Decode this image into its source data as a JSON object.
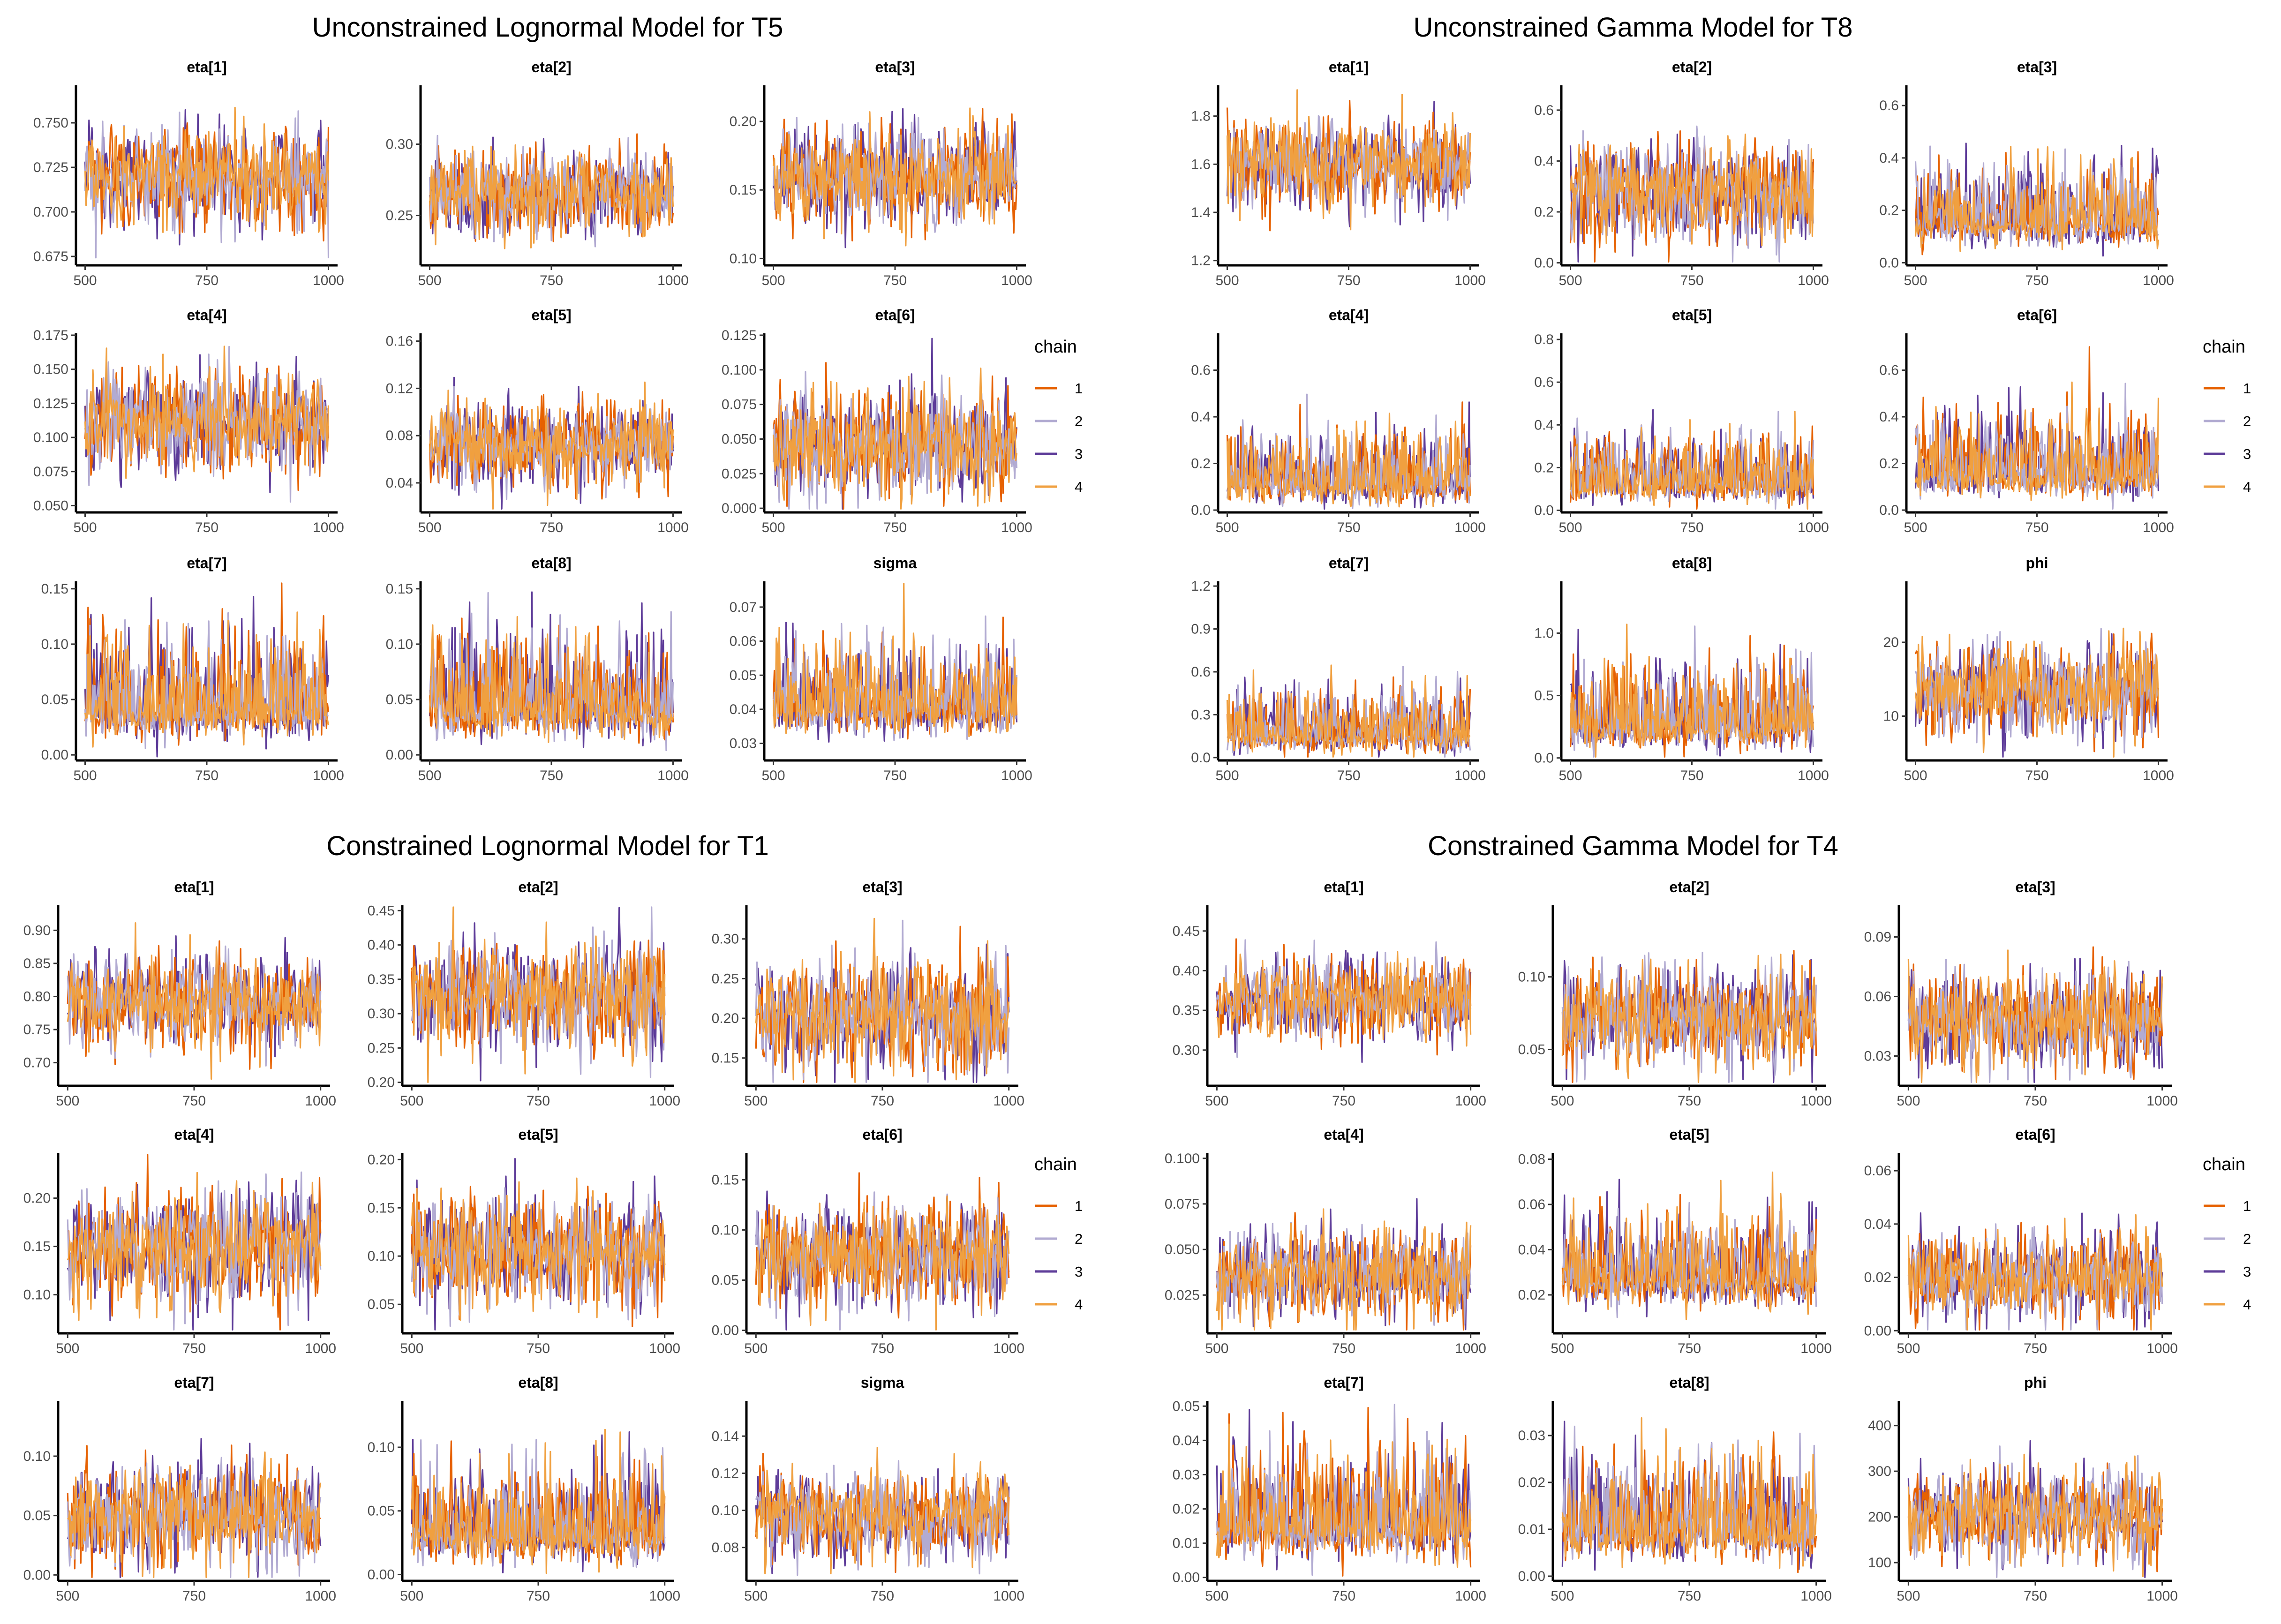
{
  "chart_data": [
    {
      "type": "line",
      "title": "Unconstrained Lognormal Model for T5",
      "x": {
        "range": [
          500,
          1000
        ],
        "ticks": [
          500,
          750,
          1000
        ]
      },
      "legend": {
        "title": "chain",
        "entries": [
          "1",
          "2",
          "3",
          "4"
        ]
      },
      "facets": [
        {
          "name": "eta[1]",
          "ylim": [
            0.67,
            0.77
          ],
          "yticks": [
            0.675,
            0.7,
            0.725,
            0.75
          ],
          "center": 0.72,
          "spread": 0.014
        },
        {
          "name": "eta[2]",
          "ylim": [
            0.215,
            0.34
          ],
          "yticks": [
            0.25,
            0.3
          ],
          "center": 0.265,
          "spread": 0.015
        },
        {
          "name": "eta[3]",
          "ylim": [
            0.095,
            0.225
          ],
          "yticks": [
            0.1,
            0.15,
            0.2
          ],
          "center": 0.16,
          "spread": 0.018
        },
        {
          "name": "eta[4]",
          "ylim": [
            0.045,
            0.175
          ],
          "yticks": [
            0.05,
            0.075,
            0.1,
            0.125,
            0.15,
            0.175
          ],
          "center": 0.112,
          "spread": 0.018
        },
        {
          "name": "eta[5]",
          "ylim": [
            0.015,
            0.165
          ],
          "yticks": [
            0.04,
            0.08,
            0.12,
            0.16
          ],
          "center": 0.072,
          "spread": 0.018
        },
        {
          "name": "eta[6]",
          "ylim": [
            -0.003,
            0.125
          ],
          "yticks": [
            0.0,
            0.025,
            0.05,
            0.075,
            0.1,
            0.125
          ],
          "center": 0.045,
          "spread": 0.02
        },
        {
          "name": "eta[7]",
          "ylim": [
            -0.005,
            0.155
          ],
          "yticks": [
            0.0,
            0.05,
            0.1,
            0.15
          ],
          "center": 0.04,
          "spread": 0.022
        },
        {
          "name": "eta[8]",
          "ylim": [
            -0.005,
            0.155
          ],
          "yticks": [
            0.0,
            0.05,
            0.1,
            0.15
          ],
          "center": 0.04,
          "spread": 0.022
        },
        {
          "name": "sigma",
          "ylim": [
            0.025,
            0.077
          ],
          "yticks": [
            0.03,
            0.04,
            0.05,
            0.06,
            0.07
          ],
          "center": 0.04,
          "spread": 0.006
        }
      ]
    },
    {
      "type": "line",
      "title": "Unconstrained Gamma Model for T8",
      "x": {
        "range": [
          500,
          1000
        ],
        "ticks": [
          500,
          750,
          1000
        ]
      },
      "legend": {
        "title": "chain",
        "entries": [
          "1",
          "2",
          "3",
          "4"
        ]
      },
      "facets": [
        {
          "name": "eta[1]",
          "ylim": [
            1.18,
            1.92
          ],
          "yticks": [
            1.2,
            1.4,
            1.6,
            1.8
          ],
          "center": 1.6,
          "spread": 0.09
        },
        {
          "name": "eta[2]",
          "ylim": [
            -0.01,
            0.69
          ],
          "yticks": [
            0.0,
            0.2,
            0.4,
            0.6
          ],
          "center": 0.28,
          "spread": 0.1
        },
        {
          "name": "eta[3]",
          "ylim": [
            -0.01,
            0.67
          ],
          "yticks": [
            0.0,
            0.2,
            0.4,
            0.6
          ],
          "center": 0.15,
          "spread": 0.07
        },
        {
          "name": "eta[4]",
          "ylim": [
            -0.01,
            0.75
          ],
          "yticks": [
            0.0,
            0.2,
            0.4,
            0.6
          ],
          "center": 0.11,
          "spread": 0.07
        },
        {
          "name": "eta[5]",
          "ylim": [
            -0.01,
            0.82
          ],
          "yticks": [
            0.0,
            0.2,
            0.4,
            0.6,
            0.8
          ],
          "center": 0.12,
          "spread": 0.07
        },
        {
          "name": "eta[6]",
          "ylim": [
            -0.01,
            0.75
          ],
          "yticks": [
            0.0,
            0.2,
            0.4,
            0.6
          ],
          "center": 0.15,
          "spread": 0.08
        },
        {
          "name": "eta[7]",
          "ylim": [
            -0.02,
            1.22
          ],
          "yticks": [
            0.0,
            0.3,
            0.6,
            0.9,
            1.2
          ],
          "center": 0.15,
          "spread": 0.1
        },
        {
          "name": "eta[8]",
          "ylim": [
            -0.02,
            1.4
          ],
          "yticks": [
            0.0,
            0.5,
            1.0
          ],
          "center": 0.25,
          "spread": 0.15
        },
        {
          "name": "phi",
          "ylim": [
            4,
            28
          ],
          "yticks": [
            10,
            20
          ],
          "center": 13.5,
          "spread": 3.2
        }
      ]
    },
    {
      "type": "line",
      "title": "Constrained Lognormal Model for T1",
      "x": {
        "range": [
          500,
          1000
        ],
        "ticks": [
          500,
          750,
          1000
        ]
      },
      "legend": {
        "title": "chain",
        "entries": [
          "1",
          "2",
          "3",
          "4"
        ]
      },
      "facets": [
        {
          "name": "eta[1]",
          "ylim": [
            0.665,
            0.935
          ],
          "yticks": [
            0.7,
            0.75,
            0.8,
            0.85,
            0.9
          ],
          "center": 0.79,
          "spread": 0.035
        },
        {
          "name": "eta[2]",
          "ylim": [
            0.195,
            0.455
          ],
          "yticks": [
            0.2,
            0.25,
            0.3,
            0.35,
            0.4,
            0.45
          ],
          "center": 0.325,
          "spread": 0.04
        },
        {
          "name": "eta[3]",
          "ylim": [
            0.115,
            0.34
          ],
          "yticks": [
            0.15,
            0.2,
            0.25,
            0.3
          ],
          "center": 0.205,
          "spread": 0.035
        },
        {
          "name": "eta[4]",
          "ylim": [
            0.06,
            0.245
          ],
          "yticks": [
            0.1,
            0.15,
            0.2
          ],
          "center": 0.15,
          "spread": 0.03
        },
        {
          "name": "eta[5]",
          "ylim": [
            0.02,
            0.205
          ],
          "yticks": [
            0.05,
            0.1,
            0.15,
            0.2
          ],
          "center": 0.105,
          "spread": 0.03
        },
        {
          "name": "eta[6]",
          "ylim": [
            -0.003,
            0.175
          ],
          "yticks": [
            0.0,
            0.05,
            0.1,
            0.15
          ],
          "center": 0.075,
          "spread": 0.025
        },
        {
          "name": "eta[7]",
          "ylim": [
            -0.005,
            0.145
          ],
          "yticks": [
            0.0,
            0.05,
            0.1
          ],
          "center": 0.05,
          "spread": 0.022
        },
        {
          "name": "eta[8]",
          "ylim": [
            -0.005,
            0.135
          ],
          "yticks": [
            0.0,
            0.05,
            0.1
          ],
          "center": 0.03,
          "spread": 0.018
        },
        {
          "name": "sigma",
          "ylim": [
            0.062,
            0.158
          ],
          "yticks": [
            0.08,
            0.1,
            0.12,
            0.14
          ],
          "center": 0.097,
          "spread": 0.012
        }
      ]
    },
    {
      "type": "line",
      "title": "Constrained Gamma Model for T4",
      "x": {
        "range": [
          500,
          1000
        ],
        "ticks": [
          500,
          750,
          1000
        ]
      },
      "legend": {
        "title": "chain",
        "entries": [
          "1",
          "2",
          "3",
          "4"
        ]
      },
      "facets": [
        {
          "name": "eta[1]",
          "ylim": [
            0.255,
            0.48
          ],
          "yticks": [
            0.3,
            0.35,
            0.4,
            0.45
          ],
          "center": 0.365,
          "spread": 0.025
        },
        {
          "name": "eta[2]",
          "ylim": [
            0.025,
            0.148
          ],
          "yticks": [
            0.05,
            0.1
          ],
          "center": 0.072,
          "spread": 0.017
        },
        {
          "name": "eta[3]",
          "ylim": [
            0.015,
            0.105
          ],
          "yticks": [
            0.03,
            0.06,
            0.09
          ],
          "center": 0.048,
          "spread": 0.012
        },
        {
          "name": "eta[4]",
          "ylim": [
            0.004,
            0.102
          ],
          "yticks": [
            0.025,
            0.05,
            0.075,
            0.1
          ],
          "center": 0.036,
          "spread": 0.012
        },
        {
          "name": "eta[5]",
          "ylim": [
            0.003,
            0.082
          ],
          "yticks": [
            0.02,
            0.04,
            0.06,
            0.08
          ],
          "center": 0.026,
          "spread": 0.009
        },
        {
          "name": "eta[6]",
          "ylim": [
            -0.001,
            0.066
          ],
          "yticks": [
            0.0,
            0.02,
            0.04,
            0.06
          ],
          "center": 0.02,
          "spread": 0.008
        },
        {
          "name": "eta[7]",
          "ylim": [
            -0.001,
            0.051
          ],
          "yticks": [
            0.0,
            0.01,
            0.02,
            0.03,
            0.04,
            0.05
          ],
          "center": 0.014,
          "spread": 0.007
        },
        {
          "name": "eta[8]",
          "ylim": [
            -0.001,
            0.037
          ],
          "yticks": [
            0.0,
            0.01,
            0.02,
            0.03
          ],
          "center": 0.009,
          "spread": 0.005
        },
        {
          "name": "phi",
          "ylim": [
            60,
            450
          ],
          "yticks": [
            100,
            200,
            300,
            400
          ],
          "center": 205,
          "spread": 50
        }
      ]
    }
  ],
  "colors": {
    "chain_1": "#e66101",
    "chain_2": "#b2abd2",
    "chain_3": "#5e3c99",
    "chain_4": "#fdb863",
    "chain_4_line": "#f0a040",
    "axis": "#000000",
    "tick_text": "#4d4d4d"
  }
}
